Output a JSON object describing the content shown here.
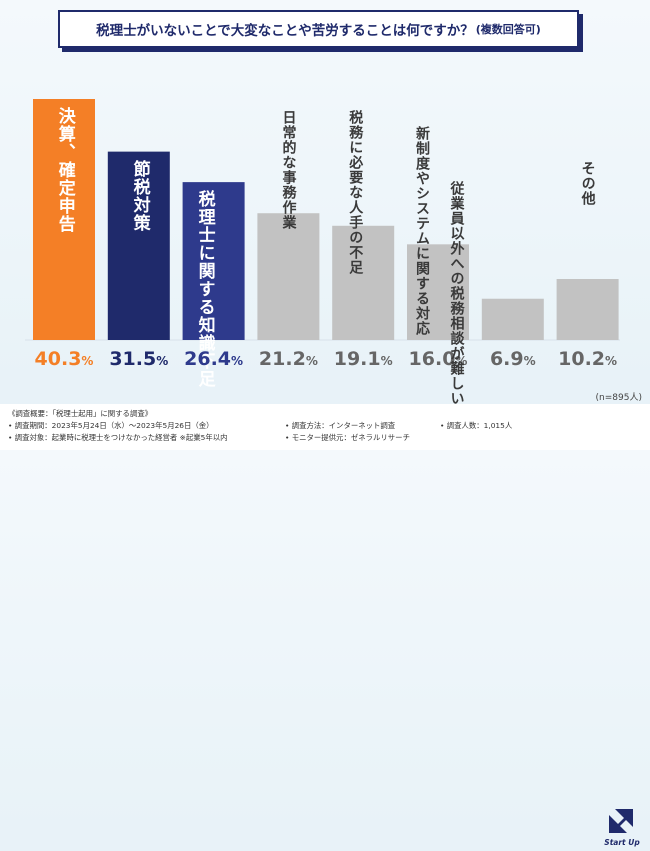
{
  "title": {
    "main": "税理士がいないことで大変なことや苦労することは何ですか？",
    "sub": "(複数回答可)"
  },
  "chart_data": {
    "type": "bar",
    "title": "税理士がいないことで大変なことや苦労することは何ですか？(複数回答可)",
    "categories": [
      "決算、確定申告",
      "節税対策",
      "税理士に関する知識不足",
      "日常的な事務作業",
      "税務に必要な人手の不足",
      "新制度やシステムに関する対応",
      "従業員以外への税務相談が難しい",
      "その他"
    ],
    "values": [
      40.3,
      31.5,
      26.4,
      21.2,
      19.1,
      16.0,
      6.9,
      10.2
    ],
    "value_labels": [
      "40.3",
      "31.5",
      "26.4",
      "21.2",
      "19.1",
      "16.0",
      "6.9",
      "10.2"
    ],
    "unit": "%",
    "colors": [
      "#f47f26",
      "#1f2a6b",
      "#2e3a8c",
      "#c2c2c2",
      "#c2c2c2",
      "#c2c2c2",
      "#c2c2c2",
      "#c2c2c2"
    ],
    "xlabel": "",
    "ylabel": "",
    "ylim": [
      0,
      42
    ],
    "sample_size": "(n=895人)"
  },
  "footer": {
    "notes": [
      "《調査概要：「税理士起用」に関する調査》",
      "• 調査期間：2023年5月24日（水）〜2023年5月26日（金）",
      "• 調査対象：起業時に税理士をつけなかった経営者 ※起業5年以内",
      "• 調査方法：インターネット調査",
      "• モニター提供元：ゼネラルリサーチ",
      "• 調査人数：1,015人"
    ],
    "logo_text": "Start Up"
  }
}
